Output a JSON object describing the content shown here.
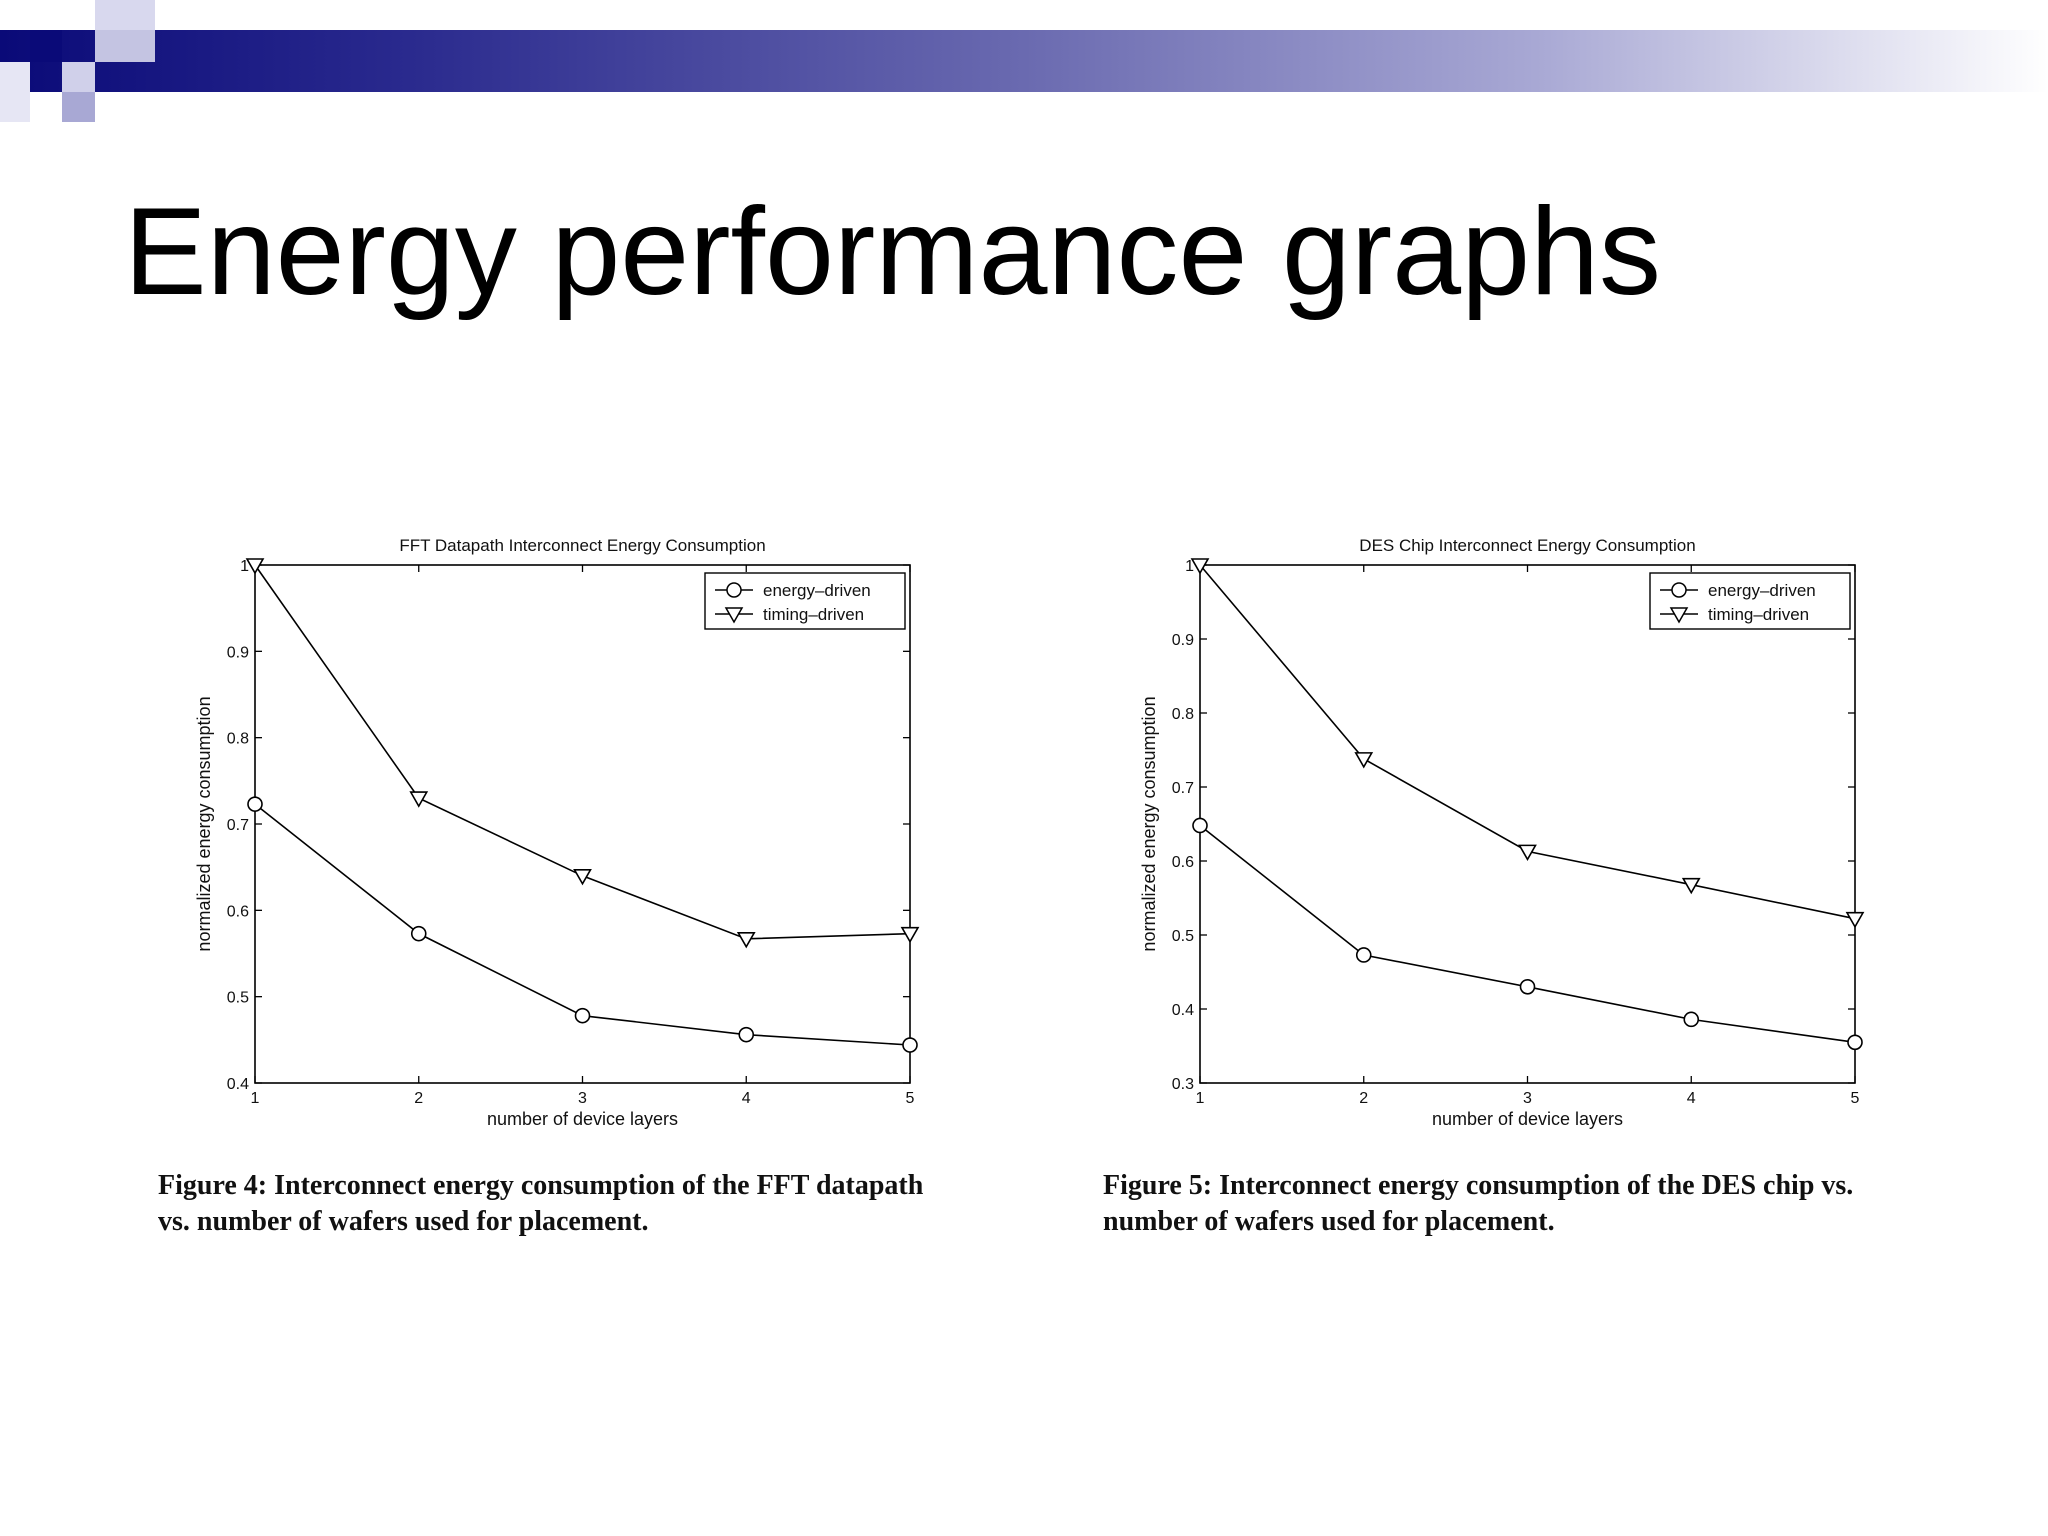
{
  "slide": {
    "title": "Energy performance graphs"
  },
  "theme": {
    "bar_start": "#0a0a78",
    "bar_end": "#ffffff",
    "deco_dark": "#0a0a78",
    "deco_light": "#a8a8d4",
    "deco_mid": "#7a7ac0"
  },
  "chart_data": [
    {
      "type": "line",
      "title": "FFT Datapath Interconnect Energy Consumption",
      "xlabel": "number of device layers",
      "ylabel": "normalized energy consumption",
      "x": [
        1,
        2,
        3,
        4,
        5
      ],
      "xticks": [
        "1",
        "2",
        "3",
        "4",
        "5"
      ],
      "yticks": [
        "0.4",
        "0.5",
        "0.6",
        "0.7",
        "0.8",
        "0.9",
        "1"
      ],
      "xlim": [
        1,
        5
      ],
      "ylim": [
        0.4,
        1.0
      ],
      "grid": false,
      "legend_position": "top-right",
      "series": [
        {
          "name": "energy–driven",
          "marker": "circle",
          "values": [
            0.723,
            0.573,
            0.478,
            0.456,
            0.444
          ]
        },
        {
          "name": "timing–driven",
          "marker": "triangle-down",
          "values": [
            1.0,
            0.73,
            0.64,
            0.567,
            0.573
          ]
        }
      ],
      "caption": "Figure 4: Interconnect energy consumption of the FFT datapath vs. number of wafers used for placement."
    },
    {
      "type": "line",
      "title": "DES Chip Interconnect Energy Consumption",
      "xlabel": "number of device layers",
      "ylabel": "normalized energy consumption",
      "x": [
        1,
        2,
        3,
        4,
        5
      ],
      "xticks": [
        "1",
        "2",
        "3",
        "4",
        "5"
      ],
      "yticks": [
        "0.3",
        "0.4",
        "0.5",
        "0.6",
        "0.7",
        "0.8",
        "0.9",
        "1"
      ],
      "xlim": [
        1,
        5
      ],
      "ylim": [
        0.3,
        1.0
      ],
      "grid": false,
      "legend_position": "top-right",
      "series": [
        {
          "name": "energy–driven",
          "marker": "circle",
          "values": [
            0.648,
            0.473,
            0.43,
            0.386,
            0.355
          ]
        },
        {
          "name": "timing–driven",
          "marker": "triangle-down",
          "values": [
            1.0,
            0.738,
            0.613,
            0.568,
            0.522
          ]
        }
      ],
      "caption": "Figure 5: Interconnect energy consumption of the DES chip vs. number of wafers used for placement."
    }
  ]
}
